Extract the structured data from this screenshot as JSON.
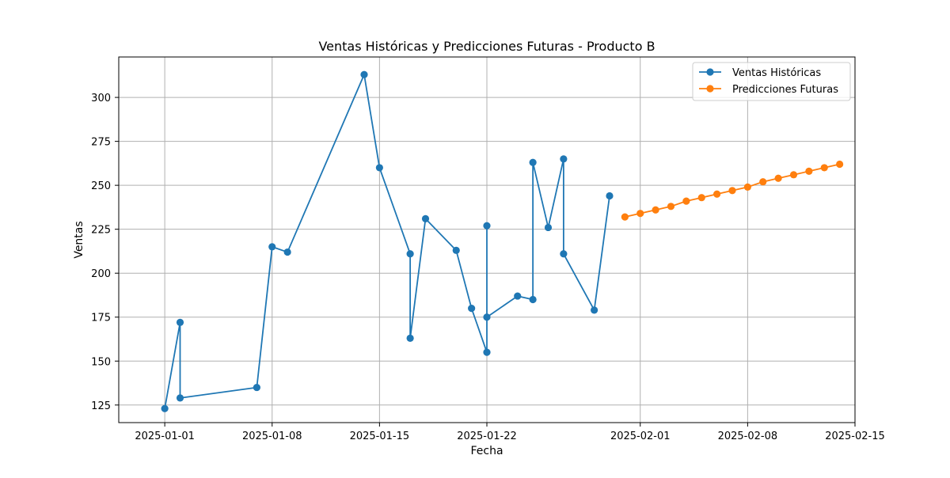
{
  "chart_data": {
    "type": "line",
    "title": "Ventas Históricas y Predicciones Futuras - Producto B",
    "xlabel": "Fecha",
    "ylabel": "Ventas",
    "x_type": "date",
    "xlim": [
      "2024-12-29",
      "2025-02-15"
    ],
    "ylim": [
      115,
      323
    ],
    "x_ticks": [
      "2025-01-01",
      "2025-01-08",
      "2025-01-15",
      "2025-01-22",
      "2025-02-01",
      "2025-02-08",
      "2025-02-15"
    ],
    "y_ticks": [
      125,
      150,
      175,
      200,
      225,
      250,
      275,
      300
    ],
    "grid": true,
    "legend_position": "top-right",
    "series": [
      {
        "name": "Ventas Históricas",
        "color": "#1f77b4",
        "marker": "circle",
        "points": [
          {
            "x": "2025-01-01",
            "y": 123
          },
          {
            "x": "2025-01-02",
            "y": 172
          },
          {
            "x": "2025-01-02",
            "y": 129
          },
          {
            "x": "2025-01-07",
            "y": 135
          },
          {
            "x": "2025-01-08",
            "y": 215
          },
          {
            "x": "2025-01-09",
            "y": 212
          },
          {
            "x": "2025-01-14",
            "y": 313
          },
          {
            "x": "2025-01-15",
            "y": 260
          },
          {
            "x": "2025-01-17",
            "y": 211
          },
          {
            "x": "2025-01-17",
            "y": 163
          },
          {
            "x": "2025-01-18",
            "y": 231
          },
          {
            "x": "2025-01-20",
            "y": 213
          },
          {
            "x": "2025-01-21",
            "y": 180
          },
          {
            "x": "2025-01-22",
            "y": 155
          },
          {
            "x": "2025-01-22",
            "y": 227
          },
          {
            "x": "2025-01-22",
            "y": 175
          },
          {
            "x": "2025-01-24",
            "y": 187
          },
          {
            "x": "2025-01-25",
            "y": 185
          },
          {
            "x": "2025-01-25",
            "y": 263
          },
          {
            "x": "2025-01-26",
            "y": 226
          },
          {
            "x": "2025-01-27",
            "y": 265
          },
          {
            "x": "2025-01-27",
            "y": 211
          },
          {
            "x": "2025-01-29",
            "y": 179
          },
          {
            "x": "2025-01-30",
            "y": 244
          }
        ]
      },
      {
        "name": "Predicciones Futuras",
        "color": "#ff7f0e",
        "marker": "circle",
        "points": [
          {
            "x": "2025-01-31",
            "y": 232
          },
          {
            "x": "2025-02-01",
            "y": 234
          },
          {
            "x": "2025-02-02",
            "y": 236
          },
          {
            "x": "2025-02-03",
            "y": 238
          },
          {
            "x": "2025-02-04",
            "y": 241
          },
          {
            "x": "2025-02-05",
            "y": 243
          },
          {
            "x": "2025-02-06",
            "y": 245
          },
          {
            "x": "2025-02-07",
            "y": 247
          },
          {
            "x": "2025-02-08",
            "y": 249
          },
          {
            "x": "2025-02-09",
            "y": 252
          },
          {
            "x": "2025-02-10",
            "y": 254
          },
          {
            "x": "2025-02-11",
            "y": 256
          },
          {
            "x": "2025-02-12",
            "y": 258
          },
          {
            "x": "2025-02-13",
            "y": 260
          },
          {
            "x": "2025-02-14",
            "y": 262
          }
        ]
      }
    ]
  }
}
